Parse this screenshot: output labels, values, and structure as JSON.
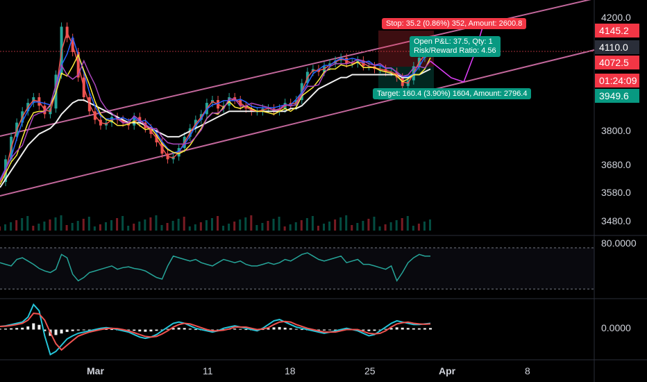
{
  "chart_data": {
    "type": "line",
    "title": "",
    "price_axis": {
      "ticks": [
        "4200.0",
        "3800.0",
        "3680.0",
        "3580.0",
        "3480.0"
      ],
      "ylim": [
        3440,
        4240
      ]
    },
    "price_tags": [
      {
        "label": "4145.2",
        "color": "#f23645"
      },
      {
        "label": "4110.0",
        "color": "#2a2e39"
      },
      {
        "label": "4072.5",
        "color": "#f23645"
      },
      {
        "label": "01:24:09",
        "color": "#f23645"
      },
      {
        "label": "3949.6",
        "color": "#089981"
      }
    ],
    "trade": {
      "stop_label": "Stop: 35.2 (0.86%) 352, Amount: 2600.8",
      "open_pnl": "Open P&L: 37.5, Qty: 1",
      "risk_reward": "Risk/Reward Ratio: 4.56",
      "target_label": "Target: 160.4 (3.90%) 1604, Amount: 2796.4",
      "stop_color": "#f23645",
      "target_color": "#089981"
    },
    "rsi_panel": {
      "tick": "80.0000"
    },
    "macd_panel": {
      "tick": "0.0000"
    },
    "x_axis": {
      "labels": [
        {
          "text": "Mar",
          "bold": true
        },
        {
          "text": "11",
          "bold": false
        },
        {
          "text": "18",
          "bold": false
        },
        {
          "text": "25",
          "bold": false
        },
        {
          "text": "Apr",
          "bold": true
        },
        {
          "text": "8",
          "bold": false
        }
      ]
    },
    "price_series": {
      "name": "",
      "values": [
        3620,
        3700,
        3780,
        3830,
        3870,
        3900,
        3920,
        3890,
        3860,
        3880,
        4000,
        4170,
        4130,
        4080,
        3990,
        3920,
        3870,
        3840,
        3820,
        3830,
        3850,
        3840,
        3830,
        3820,
        3850,
        3830,
        3810,
        3790,
        3760,
        3720,
        3700,
        3710,
        3740,
        3780,
        3810,
        3840,
        3860,
        3900,
        3910,
        3880,
        3890,
        3920,
        3910,
        3890,
        3880,
        3870,
        3870,
        3880,
        3880,
        3870,
        3880,
        3900,
        3890,
        3910,
        3970,
        4010,
        4020,
        4010,
        4030,
        4040,
        4050,
        4060,
        4040,
        4040,
        4050,
        4030,
        4030,
        4020,
        4020,
        4010,
        4010,
        3990,
        3960,
        3980,
        4030,
        4060,
        4080,
        4110
      ]
    },
    "sma_series": {
      "name": "",
      "values": [
        3600,
        3630,
        3660,
        3690,
        3720,
        3750,
        3770,
        3790,
        3800,
        3810,
        3830,
        3860,
        3880,
        3900,
        3910,
        3910,
        3900,
        3890,
        3880,
        3870,
        3860,
        3850,
        3840,
        3830,
        3830,
        3830,
        3820,
        3810,
        3800,
        3790,
        3780,
        3780,
        3780,
        3790,
        3800,
        3810,
        3820,
        3830,
        3840,
        3850,
        3860,
        3870,
        3870,
        3870,
        3870,
        3870,
        3870,
        3870,
        3870,
        3870,
        3870,
        3870,
        3880,
        3880,
        3890,
        3910,
        3930,
        3950,
        3960,
        3970,
        3980,
        3990,
        3990,
        4000,
        4000,
        4000,
        4000,
        4000,
        4000,
        4000,
        4000,
        4000,
        3990,
        3990,
        4000,
        4000,
        4010,
        4020
      ]
    },
    "rsi_values": [
      62,
      60,
      58,
      66,
      68,
      64,
      60,
      55,
      52,
      50,
      54,
      72,
      68,
      48,
      40,
      44,
      50,
      52,
      54,
      56,
      58,
      54,
      56,
      57,
      55,
      54,
      52,
      48,
      44,
      42,
      58,
      70,
      68,
      66,
      64,
      66,
      62,
      60,
      58,
      62,
      66,
      64,
      62,
      64,
      60,
      58,
      58,
      60,
      62,
      60,
      62,
      66,
      64,
      68,
      72,
      74,
      70,
      66,
      64,
      66,
      68,
      70,
      62,
      64,
      66,
      60,
      60,
      58,
      56,
      54,
      58,
      40,
      50,
      62,
      68,
      72,
      70,
      70
    ],
    "rsi_ylim": [
      20,
      90
    ],
    "macd_values": [
      5,
      6,
      8,
      10,
      12,
      20,
      40,
      30,
      -10,
      -40,
      -35,
      -25,
      -15,
      -10,
      -6,
      -4,
      -2,
      0,
      2,
      3,
      2,
      0,
      -2,
      -4,
      -8,
      -12,
      -14,
      -12,
      -8,
      -2,
      4,
      10,
      12,
      10,
      6,
      2,
      0,
      -2,
      -4,
      -2,
      2,
      4,
      6,
      4,
      2,
      0,
      -2,
      2,
      8,
      14,
      16,
      12,
      8,
      4,
      2,
      0,
      -2,
      -4,
      -6,
      -4,
      -2,
      0,
      2,
      0,
      -2,
      -6,
      -10,
      -8,
      -2,
      4,
      10,
      14,
      12,
      10,
      8,
      8,
      9,
      10
    ],
    "macd_ylim": [
      -45,
      45
    ]
  }
}
